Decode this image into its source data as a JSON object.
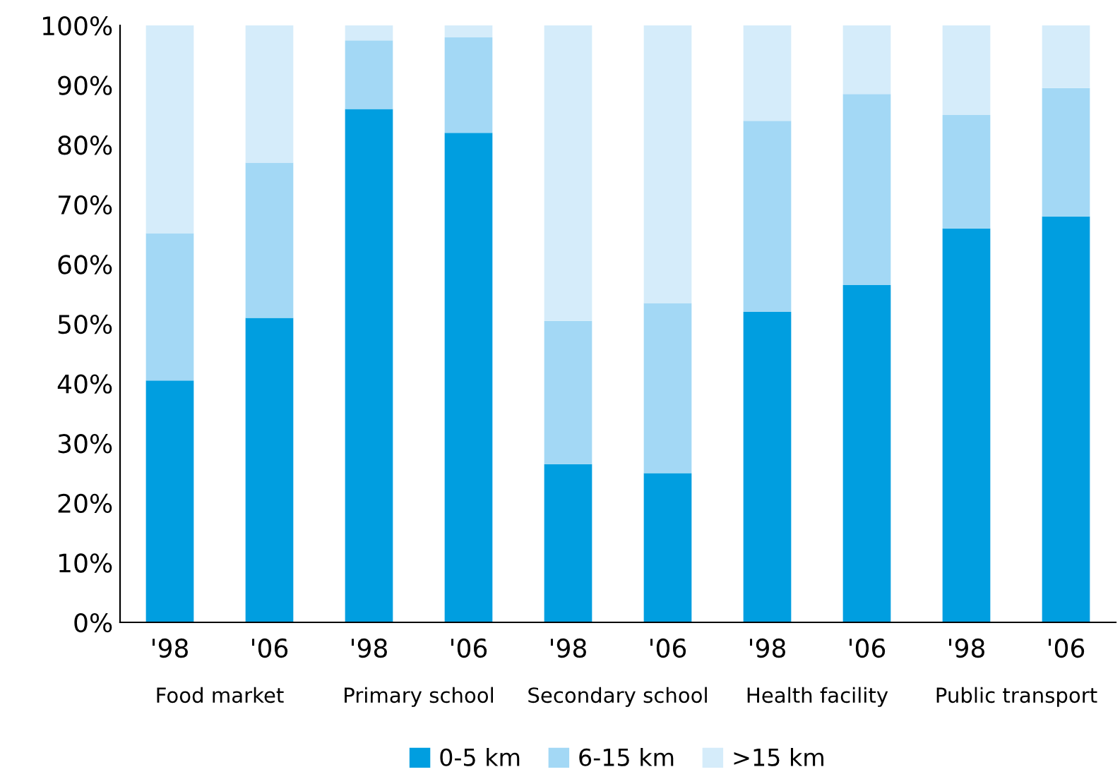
{
  "chart_data": {
    "type": "bar",
    "stacked": true,
    "categories": [
      "'98",
      "'06",
      "'98",
      "'06",
      "'98",
      "'06",
      "'98",
      "'06",
      "'98",
      "'06"
    ],
    "series": [
      {
        "name": "0-5 km",
        "color": "#009ee0",
        "values": [
          40.5,
          51,
          86,
          82,
          26.5,
          25,
          52,
          56.5,
          66,
          68
        ]
      },
      {
        "name": "6-15 km",
        "color": "#a3d8f5",
        "values": [
          24.7,
          26,
          11.5,
          16,
          24,
          28.5,
          32,
          32,
          19,
          21.5
        ]
      },
      {
        "name": ">15 km",
        "color": "#d5ecfa",
        "values": [
          34.8,
          23,
          2.5,
          2,
          49.5,
          46.5,
          16,
          11.5,
          15,
          10.5
        ]
      }
    ],
    "annotations": [
      "Food market",
      "Primary school",
      "Secondary school",
      "Health facility",
      "Public transport"
    ],
    "ylim": [
      0,
      100
    ],
    "yticks": [
      {
        "value": 0,
        "label": "0%"
      },
      {
        "value": 10,
        "label": "10%"
      },
      {
        "value": 20,
        "label": "20%"
      },
      {
        "value": 30,
        "label": "30%"
      },
      {
        "value": 40,
        "label": "40%"
      },
      {
        "value": 50,
        "label": "50%"
      },
      {
        "value": 60,
        "label": "60%"
      },
      {
        "value": 70,
        "label": "70%"
      },
      {
        "value": 80,
        "label": "80%"
      },
      {
        "value": 90,
        "label": "90%"
      },
      {
        "value": 100,
        "label": "100%"
      }
    ],
    "grid": false,
    "legend": "bottom"
  }
}
